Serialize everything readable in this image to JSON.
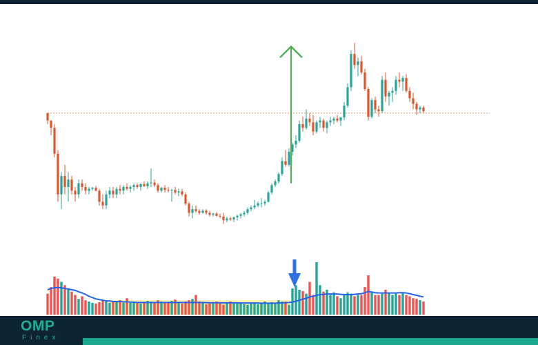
{
  "brand": {
    "logo_main": "OMP",
    "logo_sub": "Finex"
  },
  "colors": {
    "background": "#ffffff",
    "header_footer": "#0f2433",
    "accent_teal": "#1aa88f",
    "candle_up": "#26a69a",
    "candle_down": "#e0552a",
    "volume_up": "#26a69a",
    "volume_down": "#ef5350",
    "volume_ma": "#2563eb",
    "resistance_line": "#e8925a",
    "breakout_arrow": "#4caf50",
    "signal_arrow": "#2f6fe4",
    "accumulation_zone": "#fbf3b0"
  },
  "chart_data": {
    "type": "candlestick",
    "title": "",
    "xlabel": "",
    "ylabel": "",
    "price_range": [
      48,
      104
    ],
    "volume_range": [
      0,
      100
    ],
    "resistance_level": 82,
    "breakout_move": {
      "from_candle": 71,
      "to_candle": 71,
      "from_price": 63,
      "to_price": 100
    },
    "accumulation_zone": {
      "from_candle": 18,
      "to_candle": 70
    },
    "volume_signal_candle": 71,
    "volume_ma_period": 10,
    "candles": [
      [
        82,
        82,
        79,
        80
      ],
      [
        80,
        80,
        76,
        78
      ],
      [
        78,
        79,
        70,
        71
      ],
      [
        71,
        72,
        58,
        60
      ],
      [
        60,
        66,
        56,
        65
      ],
      [
        65,
        68,
        60,
        62
      ],
      [
        62,
        66,
        58,
        64
      ],
      [
        64,
        65,
        60,
        61
      ],
      [
        61,
        62,
        58,
        60
      ],
      [
        60,
        64,
        59,
        63
      ],
      [
        63,
        64,
        61,
        62
      ],
      [
        62,
        63,
        60,
        61
      ],
      [
        61,
        62,
        60,
        61.5
      ],
      [
        61.5,
        62,
        61,
        61.8
      ],
      [
        61.8,
        62.3,
        60.8,
        61
      ],
      [
        61,
        61.5,
        57,
        58
      ],
      [
        58,
        60,
        56,
        57
      ],
      [
        57,
        61,
        56,
        60
      ],
      [
        60,
        62,
        59,
        61
      ],
      [
        61,
        62,
        59,
        60
      ],
      [
        60,
        62,
        59,
        61.5
      ],
      [
        61.5,
        62.5,
        60,
        61
      ],
      [
        61,
        62.5,
        60,
        62
      ],
      [
        62,
        63,
        61,
        61.5
      ],
      [
        61.5,
        62.5,
        60.5,
        62
      ],
      [
        62,
        63,
        61,
        62.5
      ],
      [
        62.5,
        63,
        61.5,
        62
      ],
      [
        62,
        63,
        61,
        62.8
      ],
      [
        62.8,
        63.5,
        62,
        62.2
      ],
      [
        62.2,
        63.5,
        61.5,
        63
      ],
      [
        63,
        67,
        62,
        63.2
      ],
      [
        63.2,
        64,
        62,
        62.5
      ],
      [
        62.5,
        63,
        60.5,
        61
      ],
      [
        61,
        62,
        60.5,
        61.8
      ],
      [
        61.8,
        62.5,
        60.5,
        61.2
      ],
      [
        61.2,
        62,
        60.5,
        61
      ],
      [
        61,
        61.5,
        58,
        61.2
      ],
      [
        61.2,
        62,
        60,
        60.5
      ],
      [
        60.5,
        61.5,
        59.5,
        60.8
      ],
      [
        60.8,
        61.5,
        59.5,
        60
      ],
      [
        60,
        60.5,
        57,
        57.5
      ],
      [
        57.5,
        58,
        54,
        55
      ],
      [
        55,
        57,
        53.5,
        56
      ],
      [
        56,
        57,
        55,
        55.5
      ],
      [
        55.5,
        56,
        54.5,
        55
      ],
      [
        55,
        56,
        54.8,
        55.6
      ],
      [
        55.6,
        56,
        54.5,
        55
      ],
      [
        55,
        55.5,
        54,
        54.5
      ],
      [
        54.5,
        55,
        54,
        54.8
      ],
      [
        54.8,
        55.2,
        54,
        54.2
      ],
      [
        54.2,
        54.8,
        53.6,
        54
      ],
      [
        54,
        55,
        52,
        53
      ],
      [
        53,
        54,
        52.5,
        53.5
      ],
      [
        53.5,
        54,
        52.8,
        53.2
      ],
      [
        53.2,
        54,
        52.5,
        53.8
      ],
      [
        53.8,
        54.5,
        53,
        54.2
      ],
      [
        54.2,
        55,
        53.5,
        54.6
      ],
      [
        54.6,
        55.5,
        54,
        55
      ],
      [
        55,
        56.5,
        54.5,
        56
      ],
      [
        56,
        57,
        55.5,
        56.5
      ],
      [
        56.5,
        58.5,
        56,
        57
      ],
      [
        57,
        58,
        56.5,
        57.6
      ],
      [
        57.6,
        59,
        56.5,
        57.6
      ],
      [
        57.6,
        58.5,
        57,
        58
      ],
      [
        58,
        61,
        57.8,
        60.5
      ],
      [
        60.5,
        63,
        60,
        62.5
      ],
      [
        62.5,
        64,
        62,
        63.5
      ],
      [
        63.5,
        66,
        63,
        65.5
      ],
      [
        65.5,
        70,
        65,
        69
      ],
      [
        69,
        72,
        67.5,
        68
      ],
      [
        68,
        72.5,
        67.5,
        71.5
      ],
      [
        71.5,
        74,
        70.5,
        73.5
      ],
      [
        73.5,
        76,
        72.5,
        74.5
      ],
      [
        74.5,
        80,
        74,
        79
      ],
      [
        79,
        81,
        77,
        78
      ],
      [
        78,
        83,
        77.5,
        80.5
      ],
      [
        80.5,
        82,
        78.5,
        79.5
      ],
      [
        79.5,
        81.5,
        76,
        77
      ],
      [
        77,
        80,
        76.5,
        79.5
      ],
      [
        79.5,
        81,
        78,
        80
      ],
      [
        80,
        80.5,
        77,
        78
      ],
      [
        78,
        80,
        76.5,
        79.5
      ],
      [
        79.5,
        81,
        78.5,
        80
      ],
      [
        80,
        81,
        79,
        80.5
      ],
      [
        80.5,
        81.5,
        79.5,
        80
      ],
      [
        80,
        81,
        78.5,
        80.8
      ],
      [
        80.8,
        85,
        80,
        84
      ],
      [
        84,
        90,
        83.5,
        89
      ],
      [
        89,
        99,
        88,
        98
      ],
      [
        98,
        101,
        94,
        95
      ],
      [
        95,
        97,
        92,
        96
      ],
      [
        96,
        97.5,
        92.5,
        93
      ],
      [
        93,
        94,
        88,
        88.5
      ],
      [
        88.5,
        89,
        80,
        81
      ],
      [
        81,
        86,
        80.5,
        85.5
      ],
      [
        85.5,
        86.5,
        82,
        83
      ],
      [
        83,
        84,
        81,
        82.5
      ],
      [
        82.5,
        92,
        82,
        91
      ],
      [
        91,
        93,
        85,
        86.5
      ],
      [
        86.5,
        88,
        84,
        87.5
      ],
      [
        87.5,
        89,
        85,
        88
      ],
      [
        88,
        92,
        87,
        91
      ],
      [
        91,
        93,
        89,
        90.5
      ],
      [
        90.5,
        92,
        88,
        91.5
      ],
      [
        91.5,
        92.5,
        87.5,
        88
      ],
      [
        88,
        89,
        85,
        86
      ],
      [
        86,
        87.5,
        83,
        84.5
      ],
      [
        84.5,
        85,
        81.5,
        83
      ],
      [
        83,
        84,
        82,
        83.5
      ],
      [
        83.5,
        84,
        82,
        82.5
      ]
    ],
    "volume": [
      32,
      42,
      58,
      55,
      50,
      45,
      38,
      35,
      30,
      24,
      28,
      22,
      20,
      18,
      17,
      19,
      22,
      20,
      18,
      21,
      19,
      22,
      18,
      25,
      18,
      20,
      18,
      17,
      19,
      21,
      20,
      19,
      22,
      20,
      19,
      18,
      21,
      23,
      18,
      17,
      20,
      22,
      24,
      30,
      20,
      18,
      16,
      17,
      19,
      20,
      18,
      15,
      18,
      20,
      17,
      19,
      18,
      16,
      15,
      17,
      18,
      16,
      17,
      20,
      18,
      19,
      18,
      22,
      20,
      20,
      15,
      40,
      45,
      38,
      36,
      32,
      50,
      30,
      80,
      45,
      35,
      38,
      30,
      34,
      28,
      25,
      30,
      34,
      32,
      28,
      30,
      30,
      42,
      60,
      34,
      30,
      30,
      32,
      38,
      34,
      30,
      32,
      30,
      34,
      30,
      28,
      25,
      24,
      22,
      20
    ],
    "volume_ma": [
      38,
      40,
      41,
      41.5,
      41,
      40,
      39,
      38,
      37,
      35,
      33,
      31,
      28,
      26,
      24,
      23,
      22,
      21,
      21,
      20,
      20,
      20,
      19.5,
      19.5,
      19,
      19,
      18.5,
      18.5,
      18.5,
      18.5,
      18.5,
      18.5,
      18.5,
      18.5,
      18.5,
      18.5,
      18.5,
      18.5,
      18.5,
      18.5,
      18.5,
      18.5,
      18.5,
      18.5,
      18.5,
      18.5,
      18.3,
      18.2,
      18.2,
      18.2,
      18.2,
      18,
      18,
      18,
      18,
      18,
      17.8,
      17.8,
      17.8,
      17.8,
      17.8,
      17.8,
      17.5,
      17.5,
      17.5,
      17.5,
      17.5,
      17.8,
      18,
      18.2,
      18.5,
      19,
      20.5,
      22,
      23.5,
      25,
      27,
      28,
      29.5,
      30.5,
      31,
      31.5,
      31.5,
      31.5,
      31.5,
      31,
      30.5,
      30.5,
      30.5,
      31,
      31.5,
      32,
      33.5,
      35.5,
      34.5,
      33.5,
      33,
      33,
      33,
      33,
      33,
      33,
      33.5,
      33.5,
      33,
      32,
      30.5,
      29.5,
      28,
      27
    ]
  }
}
